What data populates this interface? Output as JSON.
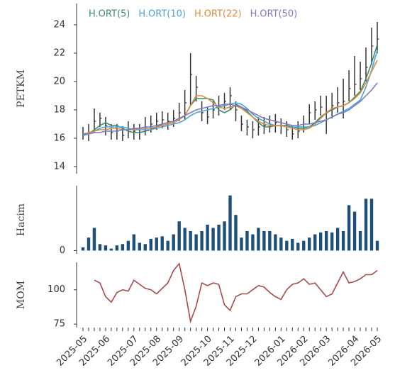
{
  "chart_data": [
    {
      "type": "ohlc",
      "ylabel": "PETKM",
      "ylim": [
        13.5,
        25.5
      ],
      "yticks": [
        14,
        16,
        18,
        20,
        22,
        24
      ],
      "high": [
        16.8,
        17.0,
        18.1,
        17.8,
        17.5,
        17.0,
        17.0,
        16.8,
        17.2,
        17.0,
        17.0,
        17.5,
        17.6,
        17.8,
        17.9,
        17.8,
        18.0,
        18.5,
        19.4,
        22.0,
        20.4,
        18.6,
        18.2,
        18.6,
        19.0,
        19.2,
        19.6,
        18.6,
        17.6,
        17.3,
        17.2,
        17.5,
        17.5,
        17.6,
        17.7,
        17.4,
        17.2,
        16.9,
        17.2,
        17.6,
        18.4,
        18.6,
        19.0,
        19.0,
        19.2,
        19.6,
        20.2,
        20.8,
        21.8,
        21.4,
        22.4,
        23.8,
        24.2
      ],
      "low": [
        15.9,
        15.8,
        16.4,
        16.8,
        16.2,
        15.9,
        15.9,
        15.8,
        16.0,
        15.9,
        15.9,
        16.2,
        16.4,
        16.6,
        16.7,
        16.6,
        16.8,
        17.2,
        17.3,
        18.3,
        18.6,
        17.2,
        17.0,
        17.4,
        17.6,
        18.0,
        18.0,
        17.2,
        16.5,
        16.2,
        16.0,
        16.2,
        16.3,
        16.4,
        16.4,
        16.3,
        16.1,
        15.9,
        16.0,
        16.4,
        17.0,
        17.3,
        17.6,
        16.3,
        17.4,
        17.8,
        17.4,
        18.6,
        19.0,
        19.4,
        20.0,
        21.2,
        22.0
      ],
      "close": [
        16.2,
        16.4,
        17.2,
        17.4,
        16.9,
        16.4,
        16.5,
        16.2,
        16.6,
        16.5,
        16.4,
        16.8,
        17.0,
        17.2,
        17.3,
        17.2,
        17.4,
        17.8,
        18.5,
        20.5,
        19.6,
        17.8,
        17.5,
        18.0,
        18.3,
        18.6,
        19.0,
        18.0,
        17.0,
        16.8,
        16.6,
        16.8,
        16.9,
        17.0,
        17.1,
        16.9,
        16.6,
        16.3,
        16.5,
        17.0,
        17.8,
        18.0,
        18.2,
        17.8,
        18.3,
        18.5,
        18.6,
        19.5,
        19.8,
        20.2,
        21.0,
        22.5,
        23.0
      ],
      "bar_color": "#333333",
      "series": [
        {
          "name": "H.ORT(5)",
          "color": "#3a8a6e",
          "values": [
            16.2,
            16.3,
            16.6,
            16.9,
            17.1,
            16.9,
            16.9,
            16.7,
            16.5,
            16.4,
            16.4,
            16.5,
            16.6,
            16.8,
            17.0,
            17.1,
            17.2,
            17.4,
            17.6,
            18.3,
            18.8,
            18.8,
            18.8,
            18.7,
            18.0,
            17.8,
            18.0,
            18.4,
            18.2,
            17.9,
            17.5,
            17.1,
            16.8,
            16.8,
            16.9,
            16.9,
            16.9,
            16.8,
            16.7,
            16.7,
            16.8,
            17.1,
            17.5,
            17.8,
            18.0,
            18.2,
            18.3,
            18.5,
            18.9,
            19.3,
            20.2,
            21.3,
            22.6
          ]
        },
        {
          "name": "H.ORT(10)",
          "color": "#4aa3d9",
          "values": [
            16.2,
            16.3,
            16.5,
            16.7,
            16.8,
            16.8,
            16.8,
            16.8,
            16.7,
            16.6,
            16.6,
            16.6,
            16.6,
            16.7,
            16.8,
            16.9,
            17.0,
            17.1,
            17.3,
            17.6,
            17.8,
            17.9,
            18.0,
            18.1,
            18.2,
            18.3,
            18.4,
            18.5,
            18.4,
            18.1,
            17.7,
            17.4,
            17.2,
            17.0,
            16.9,
            16.9,
            16.8,
            16.8,
            16.8,
            16.8,
            16.8,
            16.9,
            17.1,
            17.3,
            17.5,
            17.7,
            17.9,
            18.1,
            18.4,
            18.7,
            19.6,
            20.8,
            22.2
          ]
        },
        {
          "name": "H.ORT(22)",
          "color": "#e08a3c",
          "values": [
            16.3,
            16.4,
            16.5,
            16.6,
            16.6,
            16.7,
            16.7,
            16.6,
            16.6,
            16.6,
            16.7,
            16.7,
            16.7,
            16.8,
            16.9,
            17.0,
            17.1,
            17.3,
            17.6,
            18.3,
            19.0,
            19.0,
            18.8,
            18.5,
            18.2,
            18.1,
            18.2,
            18.3,
            18.1,
            17.8,
            17.5,
            17.2,
            17.0,
            16.9,
            16.9,
            16.9,
            16.8,
            16.7,
            16.6,
            16.6,
            16.7,
            17.0,
            17.4,
            17.8,
            18.1,
            18.2,
            18.3,
            18.5,
            18.8,
            19.2,
            19.9,
            20.7,
            21.5
          ]
        },
        {
          "name": "H.ORT(50)",
          "color": "#7b7bc4",
          "values": [
            16.3,
            16.3,
            16.4,
            16.4,
            16.5,
            16.5,
            16.5,
            16.6,
            16.6,
            16.7,
            16.7,
            16.8,
            16.8,
            16.9,
            17.0,
            17.1,
            17.2,
            17.4,
            17.6,
            17.8,
            18.0,
            18.1,
            18.2,
            18.3,
            18.3,
            18.4,
            18.4,
            18.3,
            18.2,
            18.0,
            17.8,
            17.6,
            17.4,
            17.3,
            17.2,
            17.1,
            17.0,
            16.9,
            16.9,
            17.0,
            17.0,
            17.1,
            17.2,
            17.3,
            17.5,
            17.7,
            17.8,
            18.0,
            18.3,
            18.6,
            19.0,
            19.4,
            19.9
          ]
        }
      ]
    },
    {
      "type": "bar",
      "ylabel": "Hacim",
      "ylim": [
        -5,
        100
      ],
      "yticks": [
        0
      ],
      "color": "#1f4e79",
      "values": [
        5,
        20,
        35,
        10,
        8,
        3,
        8,
        10,
        15,
        25,
        12,
        10,
        18,
        20,
        22,
        15,
        25,
        45,
        35,
        30,
        25,
        30,
        40,
        35,
        40,
        45,
        85,
        55,
        20,
        30,
        25,
        35,
        30,
        30,
        25,
        20,
        15,
        18,
        12,
        15,
        20,
        25,
        28,
        30,
        28,
        35,
        30,
        70,
        60,
        30,
        80,
        80,
        15
      ]
    },
    {
      "type": "line",
      "ylabel": "MOM",
      "ylim": [
        72.5,
        120
      ],
      "yticks": [
        75,
        100
      ],
      "color": "#a84a4a",
      "categories": [
        "2025-05",
        null,
        null,
        null,
        "2025-06",
        null,
        null,
        null,
        null,
        "2025-07",
        null,
        null,
        null,
        "2025-08",
        null,
        null,
        null,
        "2025-09",
        null,
        null,
        null,
        null,
        "2025-10",
        null,
        null,
        null,
        "2025-11",
        null,
        null,
        null,
        "2025-12",
        null,
        null,
        null,
        null,
        "2026-01",
        null,
        null,
        null,
        "2026-02",
        null,
        null,
        null,
        "2026-03",
        null,
        null,
        null,
        null,
        "2026-04",
        null,
        null,
        null,
        "2026-05"
      ],
      "values": [
        null,
        null,
        107,
        105,
        95,
        91,
        98,
        100,
        99,
        107,
        104,
        101,
        100,
        97,
        101,
        105,
        114,
        119,
        100,
        77,
        88,
        105,
        103,
        105,
        104,
        89,
        85,
        95,
        97,
        97,
        100,
        103,
        102,
        98,
        95,
        93,
        100,
        104,
        105,
        108,
        104,
        105,
        100,
        95,
        97,
        105,
        113,
        105,
        106,
        108,
        111,
        111,
        114
      ]
    }
  ]
}
